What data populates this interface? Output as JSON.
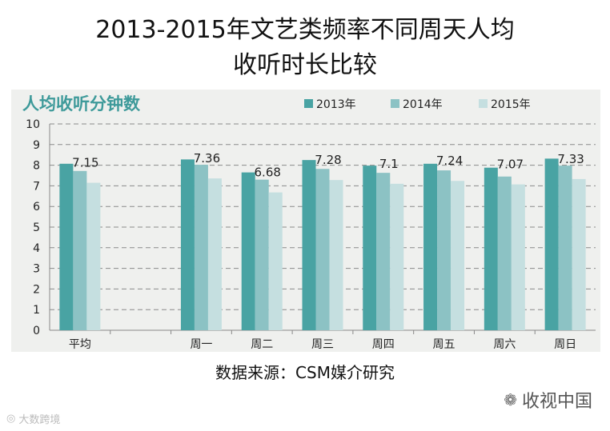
{
  "title": {
    "line1": "2013-2015年文艺类频率不同周天人均",
    "line2": "收听时长比较"
  },
  "source": "数据来源：CSM媒介研究",
  "watermarks": {
    "right": "收视中国",
    "right_icon": "wechat-icon",
    "left": "大数跨境",
    "left_icon": "logo-icon"
  },
  "chart_data": {
    "type": "bar",
    "title": "人均收听分钟数",
    "categories": [
      "平均",
      "",
      "周一",
      "周二",
      "周三",
      "周四",
      "周五",
      "周六",
      "周日"
    ],
    "series": [
      {
        "name": "2013年",
        "color": "#49a3a3",
        "values": [
          8.07,
          null,
          8.28,
          7.65,
          8.25,
          7.98,
          8.07,
          7.88,
          8.32
        ]
      },
      {
        "name": "2014年",
        "color": "#8cc2c4",
        "values": [
          7.72,
          null,
          8.02,
          7.3,
          7.82,
          7.63,
          7.75,
          7.45,
          7.98
        ]
      },
      {
        "name": "2015年",
        "color": "#c5dfe0",
        "values": [
          7.15,
          null,
          7.36,
          6.68,
          7.28,
          7.1,
          7.24,
          7.07,
          7.33
        ]
      }
    ],
    "data_labels": [
      "7.15",
      "",
      "7.36",
      "6.68",
      "7.28",
      "7.1",
      "7.24",
      "7.07",
      "7.33"
    ],
    "data_label_series": 2,
    "ylim": [
      0,
      10
    ],
    "yticks": [
      "0",
      "1",
      "2",
      "3",
      "4",
      "5",
      "6",
      "7",
      "8",
      "9",
      "10"
    ],
    "grid": true,
    "legend_position": "top-right",
    "title_color": "#3e9a9a"
  }
}
